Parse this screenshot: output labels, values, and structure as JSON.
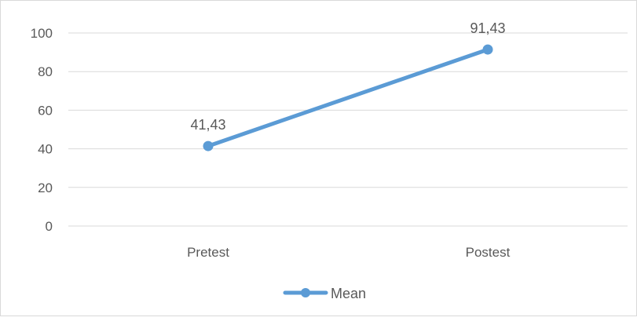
{
  "chart_data": {
    "type": "line",
    "title": "",
    "xlabel": "",
    "ylabel": "",
    "categories": [
      "Pretest",
      "Postest"
    ],
    "series": [
      {
        "name": "Mean",
        "values": [
          41.43,
          91.43
        ],
        "data_labels": [
          "41,43",
          "91,43"
        ],
        "color": "#5b9bd5"
      }
    ],
    "ylim": [
      0,
      100
    ],
    "y_ticks": [
      0,
      20,
      40,
      60,
      80,
      100
    ],
    "y_tick_labels": [
      "0",
      "20",
      "40",
      "60",
      "80",
      "100"
    ],
    "grid": true,
    "gridline_color": "#d9d9d9",
    "legend_position": "bottom"
  }
}
